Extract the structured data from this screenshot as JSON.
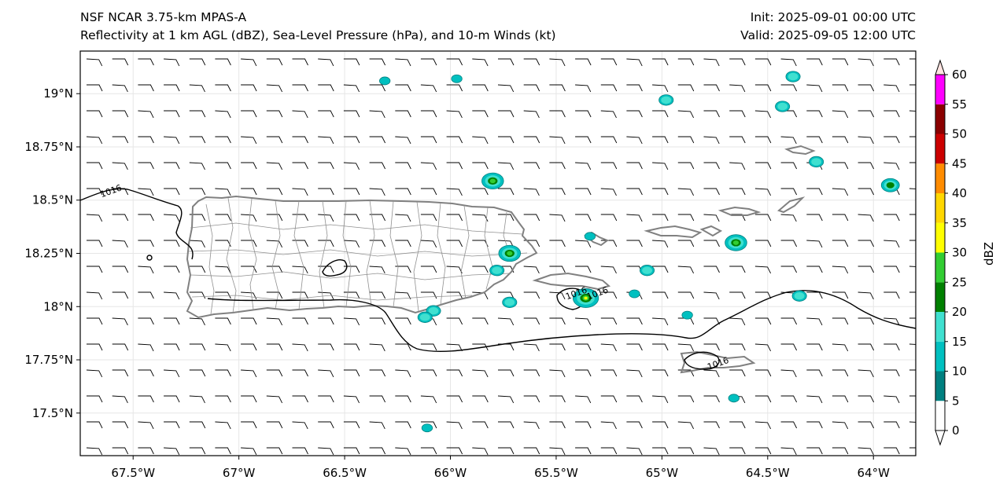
{
  "title": {
    "left_line1": "NSF NCAR 3.75-km MPAS-A",
    "left_line2": "Reflectivity at 1 km AGL (dBZ), Sea-Level Pressure (hPa), and 10-m Winds (kt)",
    "right_line1": "Init: 2025-09-01 00:00 UTC",
    "right_line2": "Valid: 2025-09-05 12:00 UTC"
  },
  "map": {
    "lon_range": [
      -67.75,
      -63.8
    ],
    "lat_range": [
      17.3,
      19.2
    ],
    "lon_ticks": [
      {
        "value": -67.5,
        "label": "67.5°W"
      },
      {
        "value": -67.0,
        "label": "67°W"
      },
      {
        "value": -66.5,
        "label": "66.5°W"
      },
      {
        "value": -66.0,
        "label": "66°W"
      },
      {
        "value": -65.5,
        "label": "65.5°W"
      },
      {
        "value": -65.0,
        "label": "65°W"
      },
      {
        "value": -64.5,
        "label": "64.5°W"
      },
      {
        "value": -64.0,
        "label": "64°W"
      }
    ],
    "lat_ticks": [
      {
        "value": 19.0,
        "label": "19°N"
      },
      {
        "value": 18.75,
        "label": "18.75°N"
      },
      {
        "value": 18.5,
        "label": "18.5°N"
      },
      {
        "value": 18.25,
        "label": "18.25°N"
      },
      {
        "value": 18.0,
        "label": "18°N"
      },
      {
        "value": 17.75,
        "label": "17.75°N"
      },
      {
        "value": 17.5,
        "label": "17.5°N"
      }
    ],
    "grid": true,
    "isobar_labels": [
      {
        "text": "1016",
        "lon": -67.6,
        "lat": 18.53
      },
      {
        "text": "1016",
        "lon": -65.4,
        "lat": 18.05
      },
      {
        "text": "1016",
        "lon": -65.3,
        "lat": 18.05
      },
      {
        "text": "1016",
        "lon": -64.73,
        "lat": 17.72
      }
    ],
    "colors": {
      "coastline": "#808080",
      "isobar": "#000000",
      "barb": "#000000"
    }
  },
  "colorbar": {
    "label": "dBZ",
    "ticks": [
      "0",
      "5",
      "10",
      "15",
      "20",
      "25",
      "30",
      "35",
      "40",
      "45",
      "50",
      "55",
      "60"
    ],
    "colors": [
      "#ffffff",
      "#008080",
      "#00c0c0",
      "#40e0d0",
      "#008000",
      "#32cd32",
      "#ffff00",
      "#ffd700",
      "#ff8c00",
      "#cc0000",
      "#8b0000",
      "#ff00ff",
      "#ffe4e1"
    ]
  },
  "reflectivity_cells": [
    {
      "lon": -65.8,
      "lat": 18.59,
      "dbz": 25
    },
    {
      "lon": -65.72,
      "lat": 18.25,
      "dbz": 25
    },
    {
      "lon": -65.78,
      "lat": 18.17,
      "dbz": 15
    },
    {
      "lon": -65.72,
      "lat": 18.02,
      "dbz": 15
    },
    {
      "lon": -65.36,
      "lat": 18.04,
      "dbz": 30
    },
    {
      "lon": -66.08,
      "lat": 17.98,
      "dbz": 15
    },
    {
      "lon": -66.12,
      "lat": 17.95,
      "dbz": 15
    },
    {
      "lon": -64.98,
      "lat": 18.97,
      "dbz": 15
    },
    {
      "lon": -64.43,
      "lat": 18.94,
      "dbz": 15
    },
    {
      "lon": -64.38,
      "lat": 19.08,
      "dbz": 15
    },
    {
      "lon": -64.65,
      "lat": 18.3,
      "dbz": 25
    },
    {
      "lon": -64.27,
      "lat": 18.68,
      "dbz": 15
    },
    {
      "lon": -63.92,
      "lat": 18.57,
      "dbz": 20
    },
    {
      "lon": -65.07,
      "lat": 18.17,
      "dbz": 15
    },
    {
      "lon": -64.35,
      "lat": 18.05,
      "dbz": 15
    },
    {
      "lon": -65.13,
      "lat": 18.06,
      "dbz": 10
    },
    {
      "lon": -65.34,
      "lat": 18.33,
      "dbz": 10
    },
    {
      "lon": -64.88,
      "lat": 17.96,
      "dbz": 10
    },
    {
      "lon": -64.66,
      "lat": 17.57,
      "dbz": 10
    },
    {
      "lon": -66.11,
      "lat": 17.43,
      "dbz": 10
    },
    {
      "lon": -66.31,
      "lat": 19.06,
      "dbz": 10
    },
    {
      "lon": -65.97,
      "lat": 19.07,
      "dbz": 10
    }
  ]
}
